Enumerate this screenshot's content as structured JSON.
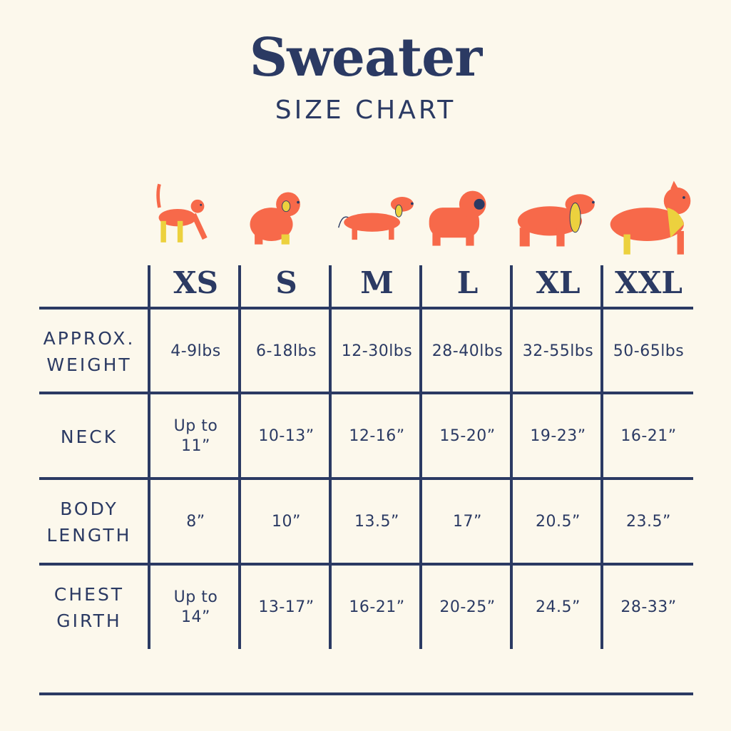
{
  "header": {
    "title": "Sweater",
    "subtitle": "SIZE CHART"
  },
  "colors": {
    "navy": "#2b3a63",
    "orange": "#f7694a",
    "yellow": "#ecd13e",
    "background": "#fcf8ec"
  },
  "sizes": [
    "XS",
    "S",
    "M",
    "L",
    "XL",
    "XXL"
  ],
  "animals": [
    "cat-icon",
    "small-fluffy-dog-icon",
    "dachshund-icon",
    "pug-icon",
    "spaniel-icon",
    "collie-icon"
  ],
  "rows": [
    {
      "label": "APPROX.\nWEIGHT",
      "values": [
        "4-9lbs",
        "6-18lbs",
        "12-30lbs",
        "28-40lbs",
        "32-55lbs",
        "50-65lbs"
      ]
    },
    {
      "label": "NECK",
      "values": [
        "Up to\n11”",
        "10-13”",
        "12-16”",
        "15-20”",
        "19-23”",
        "16-21”"
      ]
    },
    {
      "label": "BODY\nLENGTH",
      "values": [
        "8”",
        "10”",
        "13.5”",
        "17”",
        "20.5”",
        "23.5”"
      ]
    },
    {
      "label": "CHEST\nGIRTH",
      "values": [
        "Up to\n14”",
        "13-17”",
        "16-21”",
        "20-25”",
        "24.5”",
        "28-33”"
      ]
    }
  ]
}
